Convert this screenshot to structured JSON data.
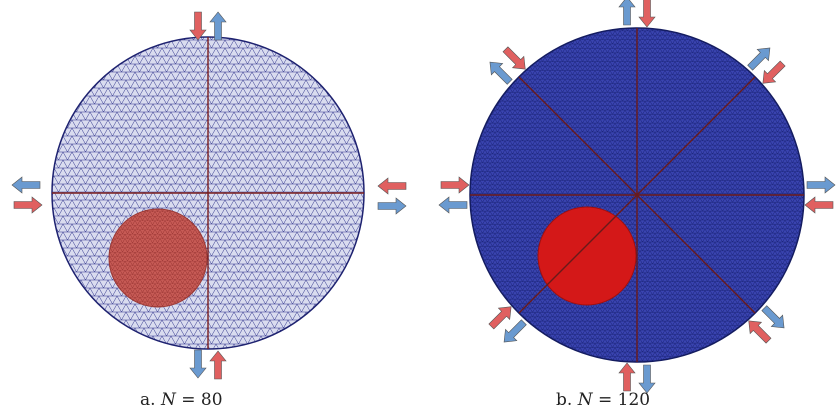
{
  "panels": [
    {
      "id": "a",
      "caption": {
        "label": "a.",
        "symbol": "N",
        "value": "= 80"
      },
      "mesh": "coarse",
      "electrode_lines": 2,
      "colors": {
        "mesh": "#2b2f8a",
        "inclusion": "#c0504d",
        "lines": "#7a1c1c"
      }
    },
    {
      "id": "b",
      "caption": {
        "label": "b.",
        "symbol": "N",
        "value": "= 120"
      },
      "mesh": "fine",
      "electrode_lines": 4,
      "colors": {
        "mesh": "#2230a0",
        "inclusion": "#d01c1c",
        "lines": "#6a1a1a"
      }
    }
  ],
  "arrows": {
    "inject_color": "#e06060",
    "measure_color": "#6a9ad0"
  }
}
